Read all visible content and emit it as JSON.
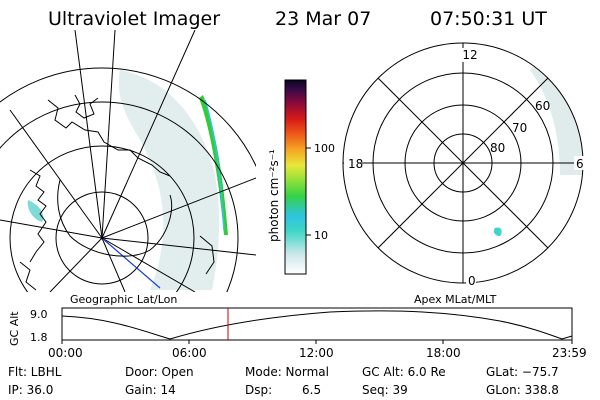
{
  "header": {
    "instrument": "Ultraviolet Imager",
    "date": "23 Mar 07",
    "time": "07:50:31 UT"
  },
  "geo_panel": {
    "label": "Geographic Lat/Lon"
  },
  "polar_panel": {
    "label": "Apex MLat/MLT",
    "mlt_labels": {
      "top": "12",
      "left": "18",
      "right": "6",
      "bottom": "0"
    },
    "lat_labels": [
      "80",
      "70",
      "60"
    ]
  },
  "colorbar": {
    "unit_label": "photon cm⁻²s⁻¹",
    "ticks": [
      "100",
      "10"
    ]
  },
  "timeline": {
    "ylabel": "GC Alt",
    "ytick_top": "9.0",
    "ytick_bottom": "1.8",
    "xticks": [
      "00:00",
      "06:00",
      "12:00",
      "18:00",
      "23:59"
    ],
    "marker_time_label": "07:50"
  },
  "info": {
    "flt": "Flt: LBHL",
    "ip": "IP: 36.0",
    "door": "Door: Open",
    "gain": "Gain: 14",
    "mode": "Mode: Normal",
    "dsp_label": "Dsp:",
    "dsp_value": "6.5",
    "gcalt": "GC Alt: 6.0 Re",
    "seq": "Seq: 39",
    "glat": "GLat: −75.7",
    "glon": "GLon: 338.8"
  },
  "colors": {
    "marker": "#cc0000",
    "track": "#1a3fd6",
    "aurora_band": "#33cc33"
  }
}
